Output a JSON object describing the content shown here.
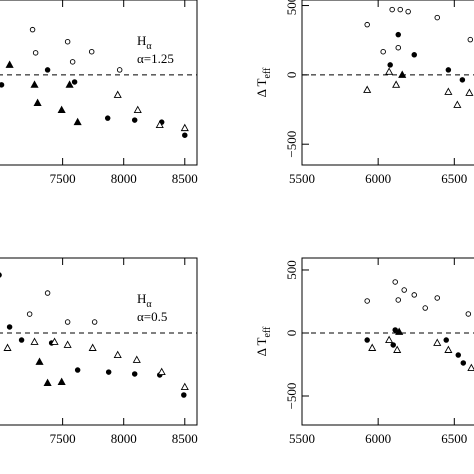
{
  "chart_data": [
    {
      "type": "scatter",
      "annotation": "H",
      "annotation_sub": "α",
      "annotation_2": "α=1.25",
      "xlim": [
        6750,
        8600
      ],
      "ylim": [
        -650,
        540
      ],
      "xticks": [
        7500,
        8000,
        8500
      ],
      "reference_line": 0,
      "series": [
        {
          "marker": "open-circle",
          "color": "#000000",
          "x": [
            7254,
            7279,
            7541,
            7582,
            7738,
            7967
          ],
          "values": [
            326,
            159,
            239,
            94,
            167,
            36
          ]
        },
        {
          "marker": "filled-circle",
          "color": "#000000",
          "x": [
            7000,
            7377,
            7598,
            7869,
            8090,
            8311,
            8500
          ],
          "values": [
            -72,
            36,
            -51,
            -312,
            -326,
            -341,
            -435
          ]
        },
        {
          "marker": "filled-triangle",
          "color": "#000000",
          "x": [
            7066,
            7270,
            7295,
            7557,
            7492,
            7623
          ],
          "values": [
            72,
            -72,
            -203,
            -72,
            -254,
            -341
          ]
        },
        {
          "marker": "open-triangle",
          "color": "#000000",
          "x": [
            7951,
            8115,
            8295,
            8500
          ],
          "values": [
            -145,
            -254,
            -362,
            -384
          ]
        }
      ]
    },
    {
      "type": "scatter",
      "y_label": "Δ T",
      "y_label_sub": "eff",
      "xlim": [
        5500,
        6800
      ],
      "ylim": [
        -650,
        540
      ],
      "xticks": [
        5500,
        6000,
        6500
      ],
      "yticks": [
        {
          "value": -500,
          "label": "−500"
        },
        0,
        500
      ],
      "reference_line": 0,
      "series": [
        {
          "marker": "open-circle",
          "color": "#000000",
          "x": [
            5928,
            6092,
            6145,
            6197,
            6388,
            6033,
            6132,
            6605
          ],
          "values": [
            362,
            471,
            471,
            456,
            413,
            167,
            196,
            254
          ]
        },
        {
          "marker": "filled-circle",
          "color": "#000000",
          "x": [
            6132,
            6237,
            6079,
            6461,
            6553
          ],
          "values": [
            290,
            145,
            72,
            36,
            -36
          ]
        },
        {
          "marker": "open-triangle",
          "color": "#000000",
          "x": [
            5928,
            6072,
            6118,
            6461,
            6520,
            6599
          ],
          "values": [
            -109,
            22,
            -72,
            -123,
            -217,
            -130
          ]
        },
        {
          "marker": "filled-triangle",
          "color": "#000000",
          "x": [
            6158
          ],
          "values": [
            0
          ]
        }
      ]
    },
    {
      "type": "scatter",
      "annotation": "H",
      "annotation_sub": "α",
      "annotation_2": "α=0.5",
      "xlim": [
        6750,
        8600
      ],
      "ylim": [
        -730,
        595
      ],
      "xticks": [
        7500,
        8000,
        8500
      ],
      "reference_line": 0,
      "series": [
        {
          "marker": "open-circle",
          "color": "#000000",
          "x": [
            7377,
            7541,
            7762,
            7230
          ],
          "values": [
            317,
            87,
            87,
            150
          ]
        },
        {
          "marker": "filled-circle",
          "color": "#000000",
          "x": [
            6980,
            7066,
            7164,
            7410,
            7623,
            7877,
            8090,
            8295,
            8492
          ],
          "values": [
            460,
            48,
            -56,
            -79,
            -294,
            -310,
            -325,
            -333,
            -492
          ]
        },
        {
          "marker": "open-triangle",
          "color": "#000000",
          "x": [
            7049,
            7270,
            7434,
            7541,
            7746,
            7951,
            8107,
            8311,
            8500
          ],
          "values": [
            -119,
            -71,
            -71,
            -95,
            -119,
            -175,
            -214,
            -310,
            -429
          ]
        },
        {
          "marker": "filled-triangle",
          "color": "#000000",
          "x": [
            7311,
            7377,
            7492
          ],
          "values": [
            -230,
            -397,
            -389
          ]
        }
      ]
    },
    {
      "type": "scatter",
      "y_label": "Δ T",
      "y_label_sub": "eff",
      "xlim": [
        5500,
        6800
      ],
      "ylim": [
        -730,
        595
      ],
      "xticks": [
        5500,
        6000,
        6500
      ],
      "yticks": [
        {
          "value": -500,
          "label": "−500"
        },
        0,
        500
      ],
      "reference_line": 0,
      "series": [
        {
          "marker": "open-circle",
          "color": "#000000",
          "x": [
            5928,
            6112,
            6171,
            6237,
            6309,
            6388,
            6592,
            6132
          ],
          "values": [
            254,
            405,
            341,
            302,
            198,
            278,
            151,
            262
          ]
        },
        {
          "marker": "filled-circle",
          "color": "#000000",
          "x": [
            5928,
            6112,
            6099,
            6447,
            6526,
            6559
          ],
          "values": [
            -56,
            24,
            -95,
            -56,
            -175,
            -238
          ]
        },
        {
          "marker": "open-triangle",
          "color": "#000000",
          "x": [
            5961,
            6072,
            6125,
            6388,
            6461,
            6612
          ],
          "values": [
            -119,
            -56,
            -135,
            -79,
            -135,
            -278
          ]
        },
        {
          "marker": "filled-triangle",
          "color": "#000000",
          "x": [
            6138
          ],
          "values": [
            8
          ]
        }
      ]
    }
  ]
}
